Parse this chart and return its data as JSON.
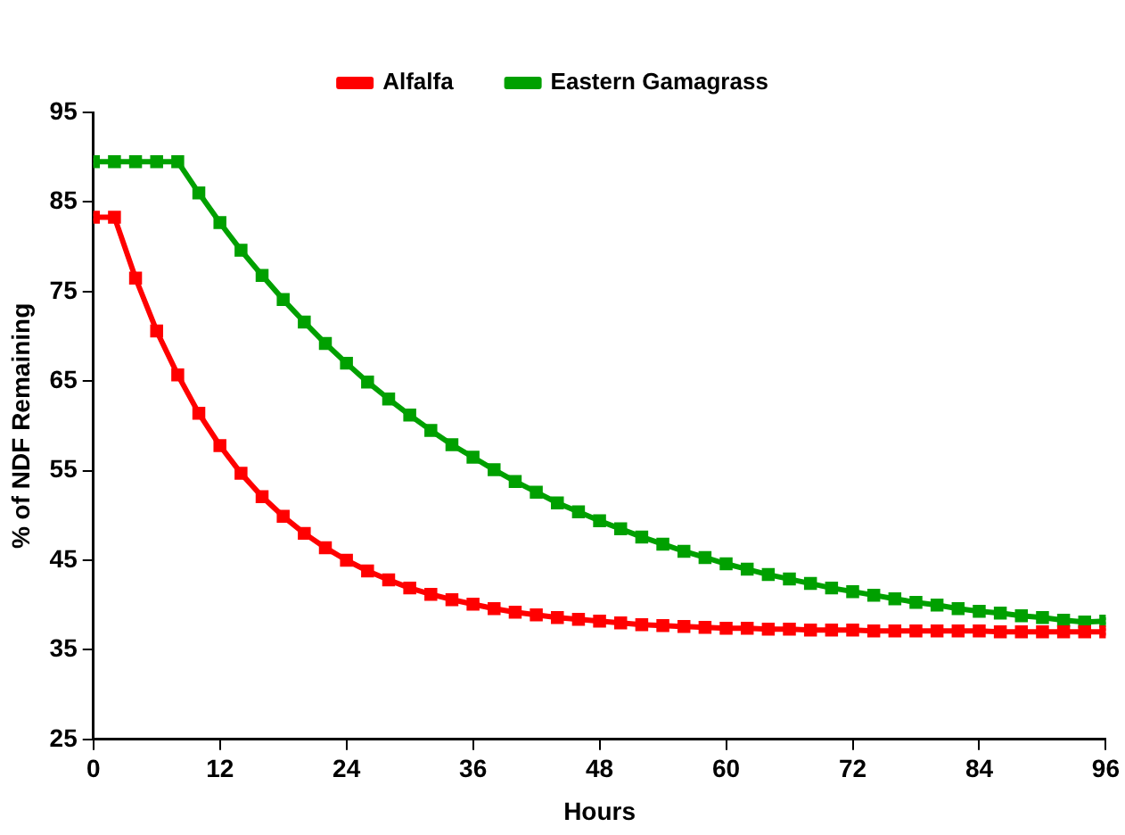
{
  "chart_data": {
    "type": "line",
    "xlabel": "Hours",
    "ylabel": "% of NDF Remaining",
    "x": [
      0,
      2,
      4,
      6,
      8,
      10,
      12,
      14,
      16,
      18,
      20,
      22,
      24,
      26,
      28,
      30,
      32,
      34,
      36,
      38,
      40,
      42,
      44,
      46,
      48,
      50,
      52,
      54,
      56,
      58,
      60,
      62,
      64,
      66,
      68,
      70,
      72,
      74,
      76,
      78,
      80,
      82,
      84,
      86,
      88,
      90,
      92,
      94,
      96
    ],
    "series": [
      {
        "name": "Alfalfa",
        "color": "#ff0000",
        "values": [
          83.3,
          83.3,
          76.5,
          70.6,
          65.7,
          61.4,
          57.8,
          54.7,
          52.1,
          49.9,
          48.0,
          46.4,
          45.0,
          43.8,
          42.8,
          41.9,
          41.2,
          40.6,
          40.1,
          39.6,
          39.2,
          38.9,
          38.6,
          38.4,
          38.2,
          38.0,
          37.8,
          37.7,
          37.6,
          37.5,
          37.4,
          37.4,
          37.3,
          37.3,
          37.2,
          37.2,
          37.2,
          37.1,
          37.1,
          37.1,
          37.1,
          37.1,
          37.1,
          37.0,
          37.0,
          37.0,
          37.0,
          37.0,
          37.0
        ]
      },
      {
        "name": "Eastern Gamagrass",
        "color": "#00a000",
        "values": [
          89.5,
          89.5,
          89.5,
          89.5,
          89.5,
          86.0,
          82.7,
          79.6,
          76.8,
          74.1,
          71.6,
          69.2,
          67.0,
          64.9,
          63.0,
          61.2,
          59.5,
          57.9,
          56.5,
          55.1,
          53.8,
          52.6,
          51.4,
          50.4,
          49.4,
          48.5,
          47.6,
          46.8,
          46.0,
          45.3,
          44.6,
          44.0,
          43.4,
          42.9,
          42.4,
          41.9,
          41.5,
          41.1,
          40.7,
          40.3,
          40.0,
          39.6,
          39.3,
          39.1,
          38.8,
          38.6,
          38.3,
          38.1,
          38.2
        ]
      }
    ],
    "xlim": [
      0,
      96
    ],
    "xticks": [
      0,
      12,
      24,
      36,
      48,
      60,
      72,
      84,
      96
    ],
    "ylim": [
      25,
      95
    ],
    "yticks": [
      25,
      35,
      45,
      55,
      65,
      75,
      85,
      95
    ],
    "grid": false,
    "legend": "top",
    "marker": "square",
    "line_style": "solid"
  }
}
